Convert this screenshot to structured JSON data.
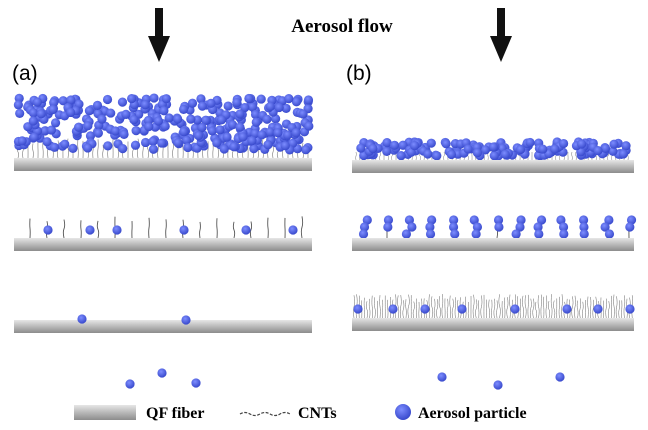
{
  "title": "Aerosol flow",
  "panels": [
    {
      "label": "(a)"
    },
    {
      "label": "(b)"
    }
  ],
  "legend": [
    {
      "label": "QF fiber"
    },
    {
      "label": "CNTs"
    },
    {
      "label": "Aerosol particle"
    }
  ]
}
